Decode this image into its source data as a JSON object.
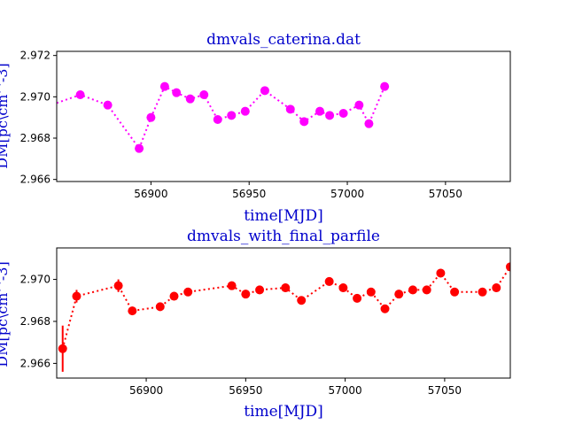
{
  "chart_data": [
    {
      "type": "line",
      "title": "dmvals_caterina.dat",
      "xlabel": "time[MJD]",
      "ylabel": "DM[pc\\cm^-3]",
      "xlim": [
        56852,
        57083
      ],
      "ylim": [
        2.9659,
        2.9722
      ],
      "xticks": [
        56900,
        56950,
        57000,
        57050
      ],
      "yticks": [
        2.966,
        2.968,
        2.97,
        2.972
      ],
      "yprecision": 3,
      "color": "#ff00ff",
      "line_style": "dotted",
      "marker": "circle",
      "error_bars": false,
      "grid": false,
      "x": [
        56864,
        56878,
        56894,
        56900,
        56907,
        56913,
        56920,
        56927,
        56934,
        56941,
        56948,
        56958,
        56971,
        56978,
        56986,
        56991,
        56998,
        57006,
        57011,
        57019
      ],
      "y": [
        2.9701,
        2.9696,
        2.9675,
        2.969,
        2.9705,
        2.9702,
        2.9699,
        2.9701,
        2.9689,
        2.9691,
        2.9693,
        2.9703,
        2.9694,
        2.9688,
        2.9693,
        2.9691,
        2.9692,
        2.9696,
        2.9687,
        2.9705
      ],
      "line_extends_left_to": [
        56852,
        2.9697
      ]
    },
    {
      "type": "line",
      "title": "dmvals_with_final_parfile",
      "xlabel": "time[MJD]",
      "ylabel": "DM[pc\\cm^-3]",
      "xlim": [
        56855,
        57083
      ],
      "ylim": [
        2.9653,
        2.9715
      ],
      "xticks": [
        56900,
        56950,
        57000,
        57050
      ],
      "yticks": [
        2.966,
        2.968,
        2.97
      ],
      "yprecision": 3,
      "color": "#ff0000",
      "line_style": "dotted",
      "marker": "circle",
      "error_bars": true,
      "grid": false,
      "x": [
        56858,
        56865,
        56886,
        56893,
        56907,
        56914,
        56921,
        56943,
        56950,
        56957,
        56970,
        56978,
        56992,
        56999,
        57006,
        57013,
        57020,
        57027,
        57034,
        57041,
        57048,
        57055,
        57069,
        57076,
        57083
      ],
      "y": [
        2.9667,
        2.9692,
        2.9697,
        2.9685,
        2.9687,
        2.9692,
        2.9694,
        2.9697,
        2.9693,
        2.9695,
        2.9696,
        2.969,
        2.9699,
        2.9696,
        2.9691,
        2.9694,
        2.9686,
        2.9693,
        2.9695,
        2.9695,
        2.9703,
        2.9694,
        2.9694,
        2.9696,
        2.9706
      ],
      "yerr": [
        0.0011,
        0.0003,
        0.0003,
        0.0002,
        0.0002,
        0.0002,
        0.0002,
        0.0002,
        0.0002,
        0.0002,
        0.0002,
        0.0002,
        0.0002,
        0.0002,
        0.0002,
        0.0002,
        0.0002,
        0.0002,
        0.0002,
        0.0002,
        0.0002,
        0.0002,
        0.0002,
        0.0002,
        0.0002
      ]
    }
  ]
}
